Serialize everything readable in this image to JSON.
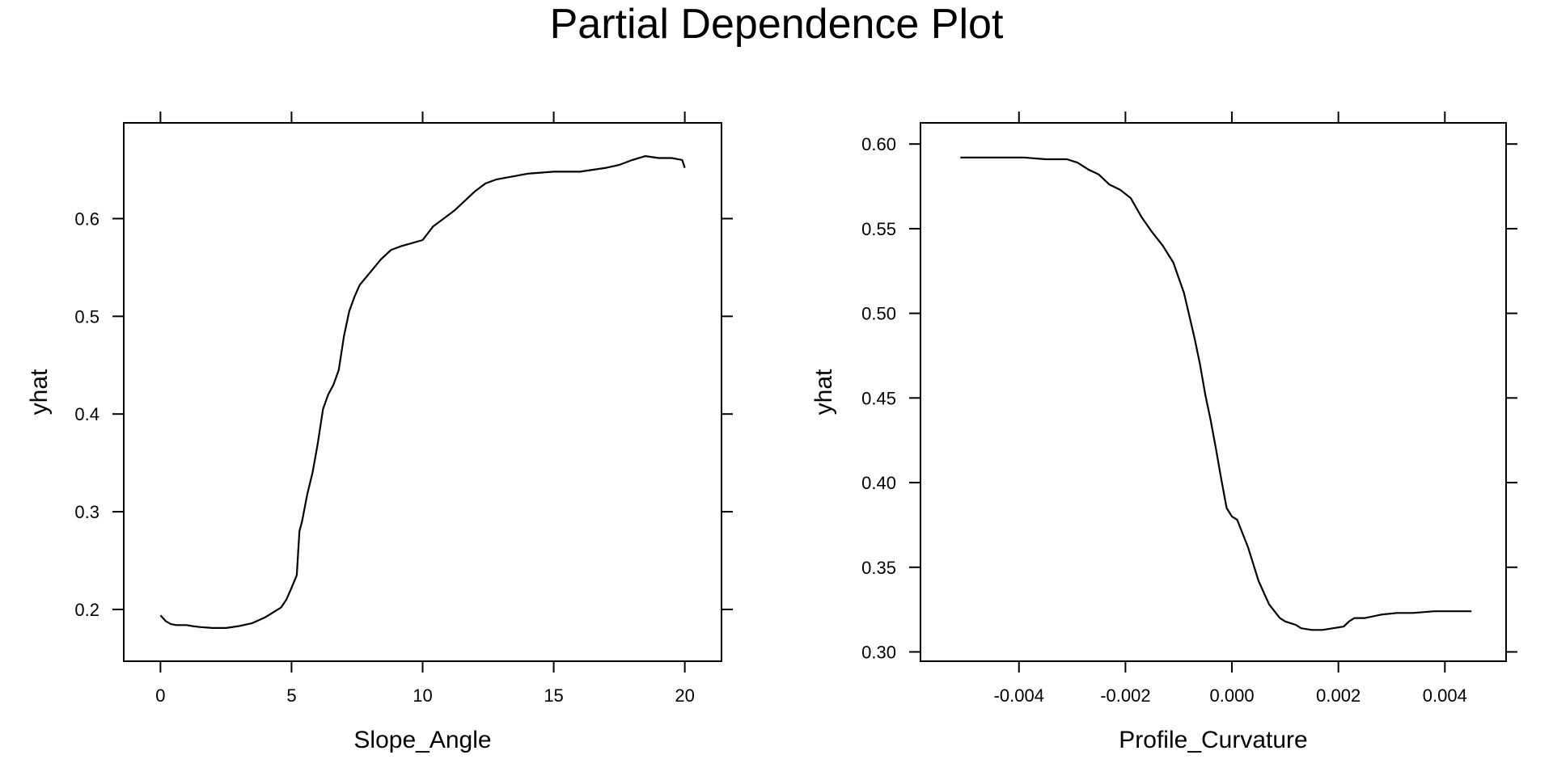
{
  "title": "Partial Dependence Plot",
  "chart_data": [
    {
      "type": "line",
      "xlabel": "Slope_Angle",
      "ylabel": "yhat",
      "xlim": [
        -1.4,
        21.4
      ],
      "ylim": [
        0.147,
        0.698
      ],
      "xticks": [
        0,
        5,
        10,
        15,
        20
      ],
      "xtick_labels": [
        "0",
        "5",
        "10",
        "15",
        "20"
      ],
      "yticks": [
        0.2,
        0.3,
        0.4,
        0.5,
        0.6
      ],
      "ytick_labels": [
        "0.2",
        "0.3",
        "0.4",
        "0.5",
        "0.6"
      ],
      "grid": false,
      "x": [
        0,
        0.2,
        0.4,
        0.6,
        0.8,
        1.0,
        1.2,
        1.5,
        2.0,
        2.5,
        3.0,
        3.5,
        4.0,
        4.3,
        4.6,
        4.8,
        5.0,
        5.2,
        5.3,
        5.4,
        5.6,
        5.8,
        6.0,
        6.2,
        6.4,
        6.6,
        6.8,
        7.0,
        7.2,
        7.4,
        7.6,
        8.0,
        8.4,
        8.8,
        9.2,
        9.6,
        10.0,
        10.4,
        10.8,
        11.2,
        11.6,
        12.0,
        12.4,
        12.8,
        13.2,
        13.6,
        14.0,
        14.5,
        15.0,
        15.5,
        16.0,
        16.5,
        17.0,
        17.5,
        18.0,
        18.5,
        19.0,
        19.5,
        19.9,
        20.0
      ],
      "y": [
        0.194,
        0.188,
        0.185,
        0.184,
        0.184,
        0.184,
        0.183,
        0.182,
        0.181,
        0.181,
        0.183,
        0.186,
        0.192,
        0.197,
        0.202,
        0.21,
        0.222,
        0.235,
        0.28,
        0.29,
        0.318,
        0.34,
        0.37,
        0.405,
        0.42,
        0.43,
        0.445,
        0.48,
        0.505,
        0.52,
        0.532,
        0.545,
        0.558,
        0.568,
        0.572,
        0.575,
        0.578,
        0.592,
        0.6,
        0.608,
        0.618,
        0.628,
        0.636,
        0.64,
        0.642,
        0.644,
        0.646,
        0.647,
        0.648,
        0.648,
        0.648,
        0.65,
        0.652,
        0.655,
        0.66,
        0.664,
        0.662,
        0.662,
        0.66,
        0.652
      ]
    },
    {
      "type": "line",
      "xlabel": "Profile_Curvature",
      "ylabel": "yhat",
      "xlim": [
        -0.00585,
        0.00515
      ],
      "ylim": [
        0.2945,
        0.6125
      ],
      "xticks": [
        -0.004,
        -0.002,
        0.0,
        0.002,
        0.004
      ],
      "xtick_labels": [
        "-0.004",
        "-0.002",
        "0.000",
        "0.002",
        "0.004"
      ],
      "yticks": [
        0.3,
        0.35,
        0.4,
        0.45,
        0.5,
        0.55,
        0.6
      ],
      "ytick_labels": [
        "0.30",
        "0.35",
        "0.40",
        "0.45",
        "0.50",
        "0.55",
        "0.60"
      ],
      "grid": false,
      "x": [
        -0.0051,
        -0.0047,
        -0.0043,
        -0.0039,
        -0.0035,
        -0.0031,
        -0.0029,
        -0.0027,
        -0.0025,
        -0.0023,
        -0.0021,
        -0.0019,
        -0.0017,
        -0.0015,
        -0.0013,
        -0.0011,
        -0.0009,
        -0.0007,
        -0.0006,
        -0.0005,
        -0.0004,
        -0.0003,
        -0.0002,
        -0.0001,
        0.0,
        0.0001,
        0.0002,
        0.0003,
        0.0004,
        0.0005,
        0.0006,
        0.0007,
        0.0008,
        0.0009,
        0.001,
        0.0011,
        0.0012,
        0.0013,
        0.0015,
        0.0017,
        0.0019,
        0.0021,
        0.0022,
        0.0023,
        0.0025,
        0.0028,
        0.0031,
        0.0034,
        0.0038,
        0.0042,
        0.0045
      ],
      "y": [
        0.592,
        0.592,
        0.592,
        0.592,
        0.591,
        0.591,
        0.589,
        0.585,
        0.582,
        0.576,
        0.573,
        0.568,
        0.557,
        0.548,
        0.54,
        0.53,
        0.512,
        0.485,
        0.47,
        0.452,
        0.437,
        0.42,
        0.402,
        0.385,
        0.38,
        0.378,
        0.37,
        0.362,
        0.352,
        0.342,
        0.335,
        0.328,
        0.324,
        0.32,
        0.318,
        0.317,
        0.316,
        0.314,
        0.313,
        0.313,
        0.314,
        0.315,
        0.318,
        0.32,
        0.32,
        0.322,
        0.323,
        0.323,
        0.324,
        0.324,
        0.324
      ]
    }
  ]
}
